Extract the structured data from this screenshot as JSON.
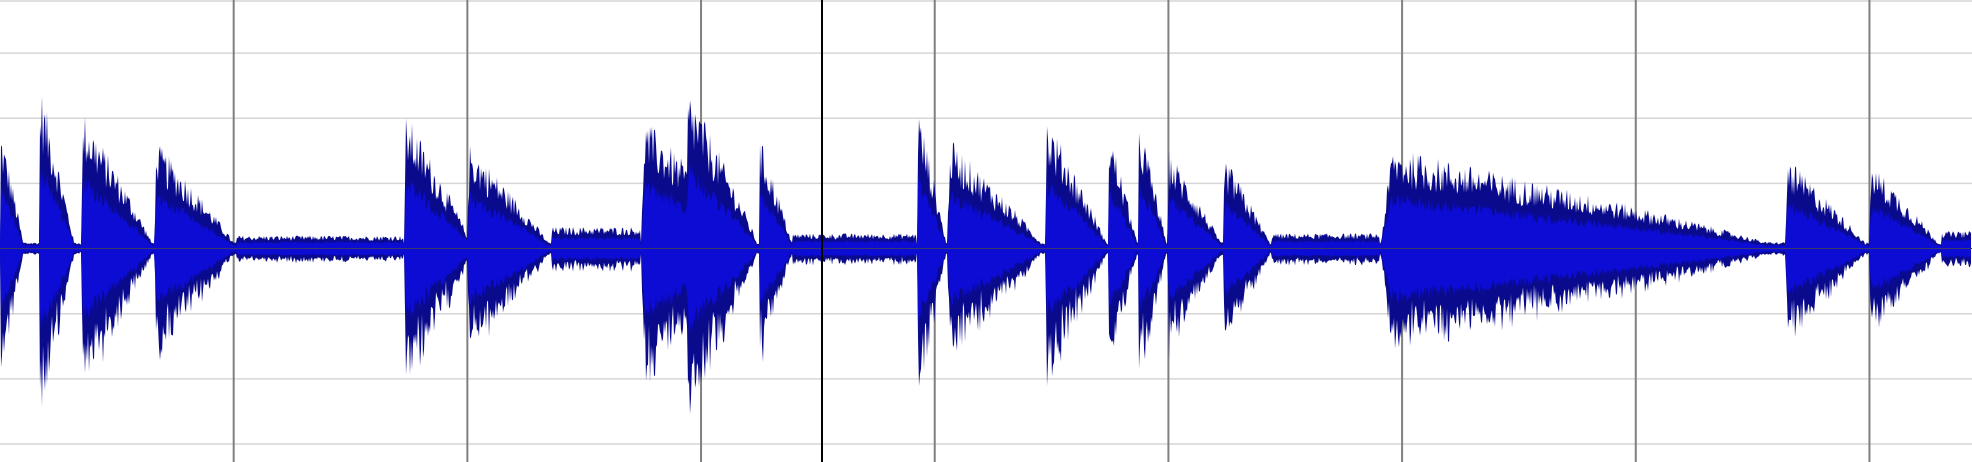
{
  "editor": {
    "view": "audio-waveform",
    "colors": {
      "background": "#ffffff",
      "hline": "#d6d6d6",
      "time_tick": "#808080",
      "cursor": "#000000",
      "wave_outer": "#0a0a8c",
      "wave_rms": "#0c0cd4",
      "center_line": "#3a3a6a"
    },
    "amplitude_gridlines": [
      -0.9,
      -0.6,
      -0.3,
      0.3,
      0.6,
      0.9
    ],
    "time_ticks": [
      0.125,
      0.25,
      0.375,
      0.5,
      0.625,
      0.75,
      0.875,
      1.0
    ],
    "cursor_position": 0.438,
    "bursts": [
      {
        "start": 0.0,
        "end": 0.012,
        "peak": 0.58
      },
      {
        "start": 0.02,
        "end": 0.038,
        "peak": 0.79
      },
      {
        "start": 0.041,
        "end": 0.078,
        "peak": 0.66
      },
      {
        "start": 0.078,
        "end": 0.12,
        "peak": 0.51
      },
      {
        "start": 0.12,
        "end": 0.205,
        "peak": 0.06
      },
      {
        "start": 0.205,
        "end": 0.24,
        "peak": 0.65
      },
      {
        "start": 0.237,
        "end": 0.28,
        "peak": 0.5
      },
      {
        "start": 0.28,
        "end": 0.325,
        "peak": 0.1
      },
      {
        "start": 0.325,
        "end": 0.382,
        "peak": 0.62
      },
      {
        "start": 0.348,
        "end": 0.385,
        "peak": 0.77
      },
      {
        "start": 0.385,
        "end": 0.402,
        "peak": 0.53
      },
      {
        "start": 0.402,
        "end": 0.465,
        "peak": 0.07
      },
      {
        "start": 0.465,
        "end": 0.48,
        "peak": 0.68
      },
      {
        "start": 0.48,
        "end": 0.53,
        "peak": 0.52
      },
      {
        "start": 0.53,
        "end": 0.562,
        "peak": 0.63
      },
      {
        "start": 0.562,
        "end": 0.577,
        "peak": 0.58
      },
      {
        "start": 0.577,
        "end": 0.592,
        "peak": 0.63
      },
      {
        "start": 0.592,
        "end": 0.62,
        "peak": 0.47
      },
      {
        "start": 0.62,
        "end": 0.645,
        "peak": 0.44
      },
      {
        "start": 0.645,
        "end": 0.7,
        "peak": 0.07
      },
      {
        "start": 0.7,
        "end": 0.905,
        "peak": 0.48
      },
      {
        "start": 0.905,
        "end": 0.948,
        "peak": 0.43
      },
      {
        "start": 0.948,
        "end": 0.985,
        "peak": 0.41
      },
      {
        "start": 0.985,
        "end": 1.0,
        "peak": 0.08
      }
    ]
  }
}
